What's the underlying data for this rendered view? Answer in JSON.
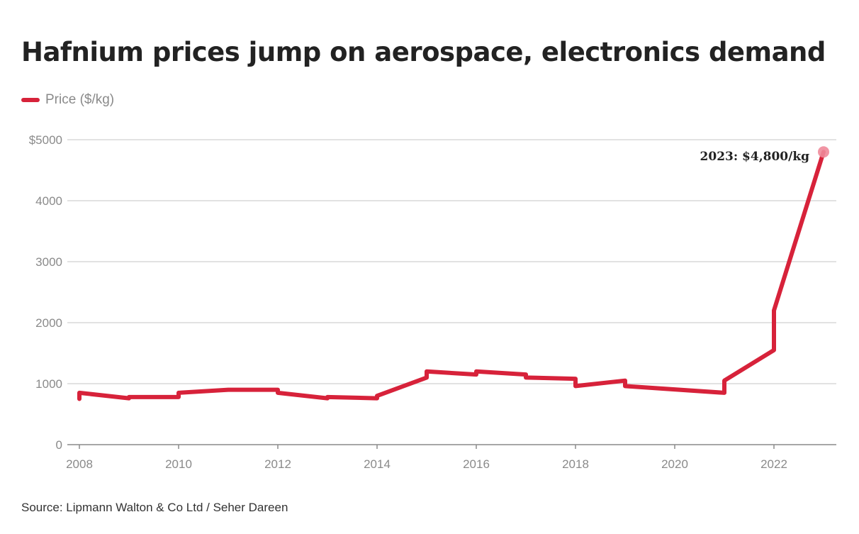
{
  "chart_data": {
    "type": "line",
    "title": "Hafnium prices jump on aerospace, electronics demand",
    "source": "Source: Lipmann Walton & Co Ltd / Seher Dareen",
    "xlabel": "",
    "ylabel": "",
    "xlim": [
      2008,
      2023.2
    ],
    "ylim": [
      0,
      5000
    ],
    "grid": true,
    "legend_position": "top-left",
    "x_ticks": [
      2008,
      2010,
      2012,
      2014,
      2016,
      2018,
      2020,
      2022
    ],
    "x_tick_labels": [
      "2008",
      "2010",
      "2012",
      "2014",
      "2016",
      "2018",
      "2020",
      "2022"
    ],
    "y_ticks": [
      0,
      1000,
      2000,
      3000,
      4000,
      5000
    ],
    "y_tick_labels": [
      "0",
      "1000",
      "2000",
      "3000",
      "4000",
      "$5000"
    ],
    "colors": {
      "line": "#d7223a",
      "endpoint": "#f08a9a",
      "grid": "#d9d9d9",
      "axis": "#8a8a8a"
    },
    "series": [
      {
        "name": "Price ($/kg)",
        "x": [
          2008,
          2008,
          2009,
          2009,
          2010,
          2010,
          2011,
          2012,
          2012,
          2013,
          2013,
          2014,
          2014,
          2015,
          2015,
          2016,
          2016,
          2017,
          2017,
          2018,
          2018,
          2019,
          2019,
          2021,
          2021,
          2022,
          2022,
          2023
        ],
        "y": [
          750,
          850,
          760,
          780,
          780,
          850,
          900,
          900,
          850,
          760,
          780,
          760,
          800,
          1100,
          1200,
          1150,
          1200,
          1150,
          1100,
          1080,
          960,
          1050,
          960,
          850,
          1050,
          1550,
          2200,
          4800
        ]
      }
    ],
    "annotations": [
      {
        "x": 2023,
        "y": 4800,
        "text": "2023: $4,800/kg"
      }
    ]
  }
}
